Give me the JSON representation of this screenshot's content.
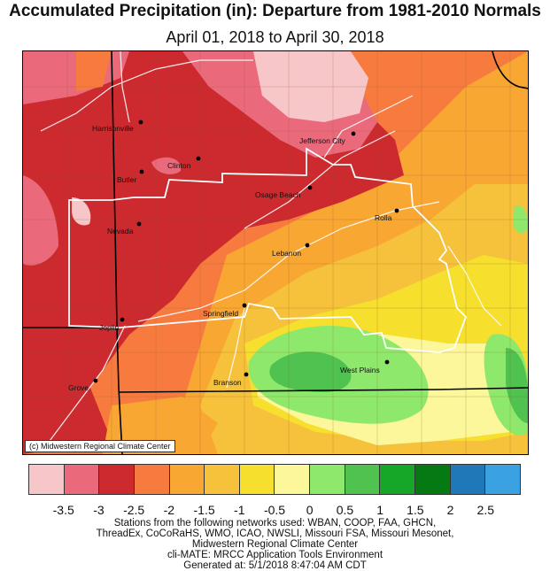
{
  "title": "Accumulated Precipitation (in): Departure from 1981-2010 Normals",
  "subtitle": "April 01, 2018 to April 30, 2018",
  "credit": "(c) Midwestern Regional Climate Center",
  "cities": [
    {
      "name": "Harrisonville"
    },
    {
      "name": "Jefferson City"
    },
    {
      "name": "Clinton"
    },
    {
      "name": "Butler"
    },
    {
      "name": "Osage Beach"
    },
    {
      "name": "Rolla"
    },
    {
      "name": "Nevada"
    },
    {
      "name": "Lebanon"
    },
    {
      "name": "Springfield"
    },
    {
      "name": "Joplin"
    },
    {
      "name": "West Plains"
    },
    {
      "name": "Branson"
    },
    {
      "name": "Grove"
    }
  ],
  "legend": {
    "colors": [
      "#f7c6c8",
      "#ea6a7c",
      "#cc2a2e",
      "#f77b3f",
      "#f8a733",
      "#f6c23b",
      "#f6df2d",
      "#fbf79a",
      "#8ee86c",
      "#4fc24f",
      "#16a628",
      "#067a12",
      "#1f78b8",
      "#3aa2e0"
    ],
    "ticks": [
      "-3.5",
      "-3",
      "-2.5",
      "-2",
      "-1.5",
      "-1",
      "-0.5",
      "0",
      "0.5",
      "1",
      "1.5",
      "2",
      "2.5"
    ]
  },
  "footer": [
    "Stations from the following networks used: WBAN, COOP, FAA, GHCN,",
    "ThreadEx, CoCoRaHS, WMO, ICAO, NWSLI, Missouri FSA, Missouri Mesonet,",
    "Midwestern Regional Climate Center",
    "cli-MATE: MRCC Application Tools Environment",
    "Generated at: 5/1/2018 8:47:04 AM CDT"
  ]
}
